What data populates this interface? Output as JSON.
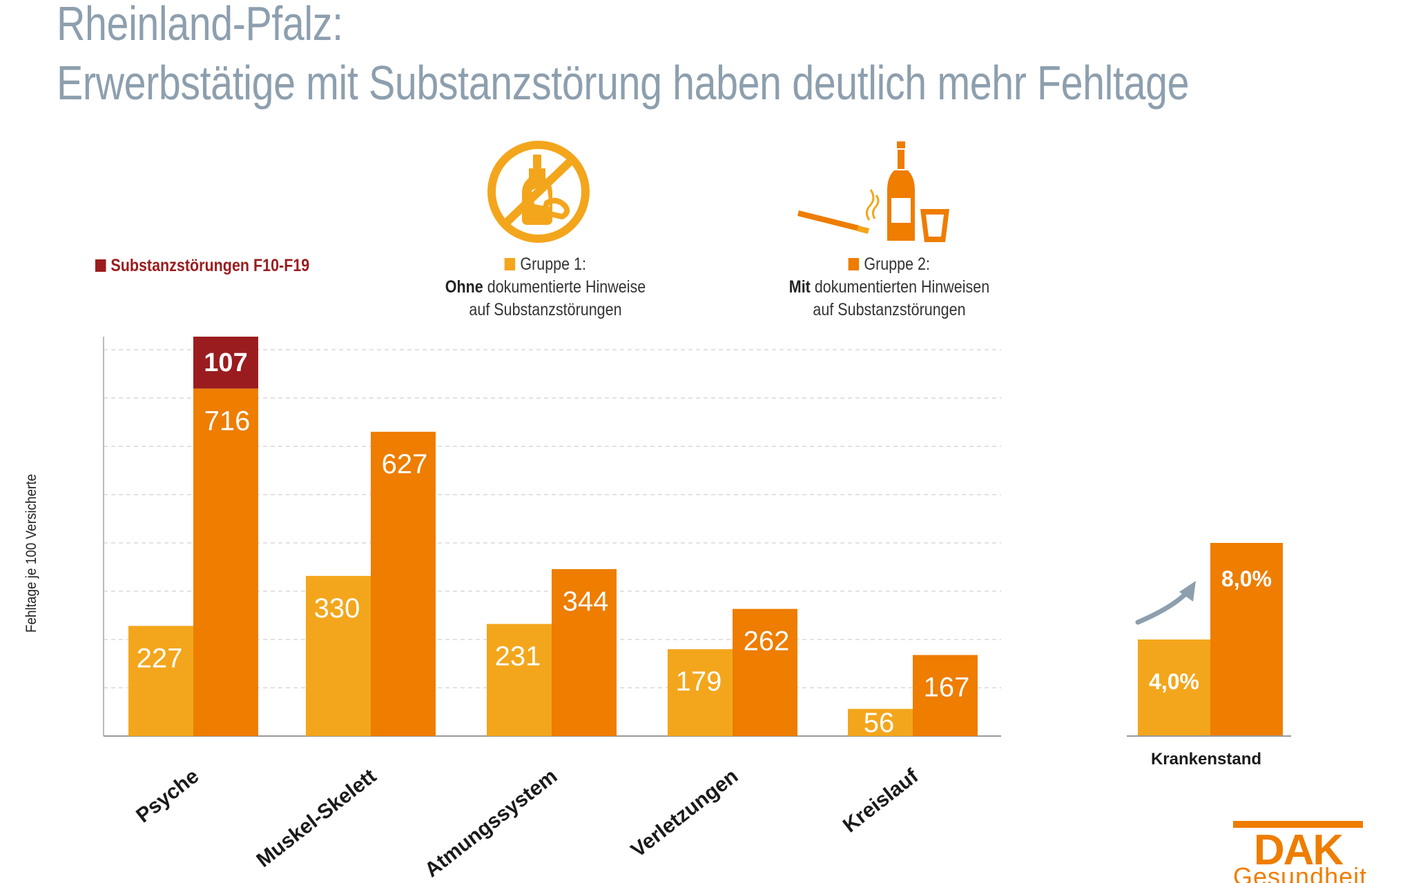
{
  "title_line1": "Rheinland-Pfalz:",
  "title_line2": "Erwerbstätige mit Substanzstörung haben deutlich mehr Fehltage",
  "legend": {
    "f_label": "Substanzstörungen F10-F19",
    "g1_title": "Gruppe 1:",
    "g1_bold": "Ohne",
    "g1_rest": " dokumentierte Hinweise",
    "g1_line3": "auf Substanzstörungen",
    "g2_title": "Gruppe 2:",
    "g2_bold": "Mit",
    "g2_rest": " dokumentierten Hinweisen",
    "g2_line3": "auf Substanzstörungen"
  },
  "logo": {
    "main": "DAK",
    "sub": "Gesundheit"
  },
  "colors": {
    "group1": "#f3a61c",
    "group2": "#ee7d00",
    "f10": "#9b1c1f",
    "grid": "#d9d9d9",
    "title": "#8d9fae"
  },
  "chart_data": [
    {
      "type": "bar",
      "ylabel": "Fehltage je 100 Versicherte",
      "categories": [
        "Psyche",
        "Muskel-Skelett",
        "Atmungssystem",
        "Verletzungen",
        "Kreislauf"
      ],
      "series": [
        {
          "name": "Gruppe 1",
          "values": [
            227,
            330,
            231,
            179,
            56
          ]
        },
        {
          "name": "Gruppe 2",
          "values": [
            716,
            627,
            344,
            262,
            167
          ]
        },
        {
          "name": "Substanzstörungen F10-F19",
          "values": [
            107,
            0,
            0,
            0,
            0
          ],
          "stacked_on": "Gruppe 2"
        }
      ],
      "grid": true,
      "ylim": [
        0,
        823
      ]
    },
    {
      "type": "bar",
      "categories": [
        "Krankenstand"
      ],
      "series": [
        {
          "name": "Gruppe 1",
          "values": [
            4.0
          ],
          "labels": [
            "4,0%"
          ]
        },
        {
          "name": "Gruppe 2",
          "values": [
            8.0
          ],
          "labels": [
            "8,0%"
          ]
        }
      ]
    }
  ]
}
